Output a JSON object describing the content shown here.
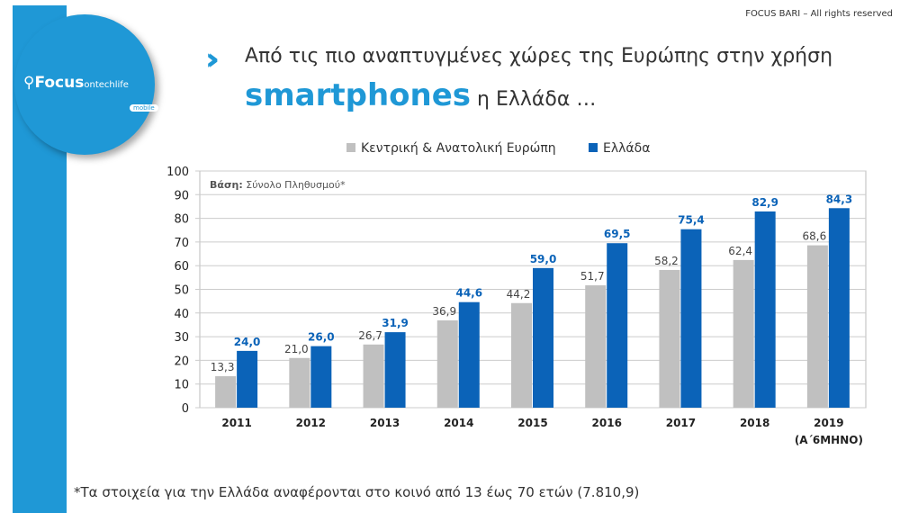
{
  "header": {
    "copyright": "FOCUS BARI – All rights reserved",
    "title_line1": "Από τις πιο αναπτυγμένες χώρες της Ευρώπης στην χρήση",
    "title_highlight": "smartphones",
    "title_line2_rest": " η Ελλάδα …"
  },
  "logo": {
    "text": "Focus",
    "sub": "ontechlife",
    "badge": "mobile"
  },
  "footnote": "*Τα στοιχεία για την Ελλάδα αναφέρονται στο κοινό από 13 έως 70 ετών (7.810,9)",
  "chart_data": {
    "type": "bar",
    "annotation_label": "Βάση:",
    "annotation_value": " Σύνολο Πληθυσμού*",
    "categories": [
      "2011",
      "2012",
      "2013",
      "2014",
      "2015",
      "2016",
      "2017",
      "2018",
      "2019"
    ],
    "category_sublabels": [
      "",
      "",
      "",
      "",
      "",
      "",
      "",
      "",
      "(Α΄6ΜΗΝΟ)"
    ],
    "series": [
      {
        "name": "Κεντρική & Ανατολική Ευρώπη",
        "color": "#c0c0c0",
        "labels": [
          "13,3",
          "21,0",
          "26,7",
          "36,9",
          "44,2",
          "51,7",
          "58,2",
          "62,4",
          "68,6"
        ],
        "values": [
          13.3,
          21.0,
          26.7,
          36.9,
          44.2,
          51.7,
          58.2,
          62.4,
          68.6
        ]
      },
      {
        "name": "Ελλάδα",
        "color": "#0b63b8",
        "labels": [
          "24,0",
          "26,0",
          "31,9",
          "44,6",
          "59,0",
          "69,5",
          "75,4",
          "82,9",
          "84,3"
        ],
        "values": [
          24.0,
          26.0,
          31.9,
          44.6,
          59.0,
          69.5,
          75.4,
          82.9,
          84.3
        ]
      }
    ],
    "ylim": [
      0,
      100
    ],
    "yticks": [
      "0",
      "10",
      "20",
      "30",
      "40",
      "50",
      "60",
      "70",
      "80",
      "90",
      "100"
    ],
    "grid": true,
    "legend": "top"
  }
}
